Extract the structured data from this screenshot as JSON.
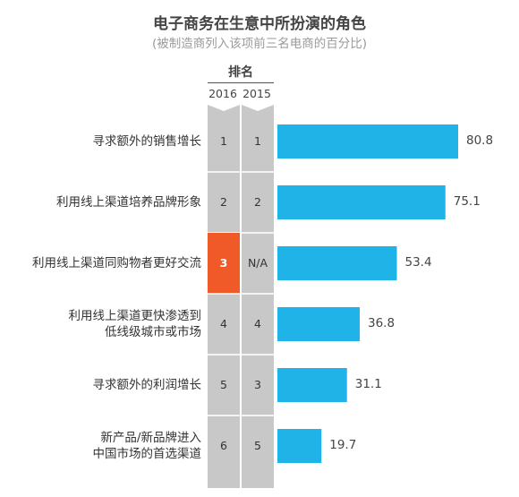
{
  "title": "电子商务在生意中所扮演的角色",
  "subtitle": "(被制造商列入该项前三名电商的百分比)",
  "rank_header": "排名",
  "colors": {
    "bar": "#1FB3E8",
    "column": "#C8C8C8",
    "highlight": "#F05A28",
    "divider": "#FFFFFF"
  },
  "chart_data": {
    "type": "bar",
    "orientation": "horizontal",
    "title": "电子商务在生意中所扮演的角色",
    "subtitle": "(被制造商列入该项前三名电商的百分比)",
    "categories": [
      "寻求额外的销售增长",
      "利用线上渠道培养品牌形象",
      "利用线上渠道同购物者更好交流",
      "利用线上渠道更快渗透到\n低线级城市或市场",
      "寻求额外的利润增长",
      "新产品/新品牌进入\n中国市场的首选渠道"
    ],
    "values": [
      80.8,
      75.1,
      53.4,
      36.8,
      31.1,
      19.7
    ],
    "value_labels": [
      "80.8",
      "75.1",
      "53.4",
      "36.8",
      "31.1",
      "19.7"
    ],
    "rank_columns": [
      {
        "year": "2016",
        "ranks": [
          "1",
          "2",
          "3",
          "4",
          "5",
          "6"
        ],
        "highlight_index": 2
      },
      {
        "year": "2015",
        "ranks": [
          "1",
          "2",
          "N/A",
          "4",
          "3",
          "5"
        ]
      }
    ],
    "xlim": [
      0,
      100
    ]
  }
}
